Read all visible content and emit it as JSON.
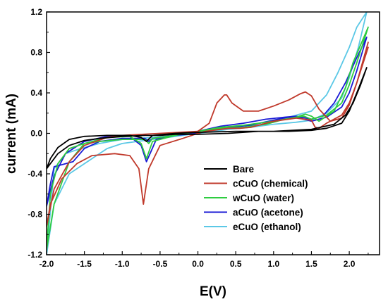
{
  "chart_data": {
    "type": "line",
    "title": "",
    "xlabel": "E(V)",
    "ylabel": "current  (mA)",
    "xlim": [
      -2.0,
      2.4
    ],
    "ylim": [
      -1.2,
      1.2
    ],
    "xticks": [
      "-2.0",
      "-1.5",
      "-1.0",
      "-0.5",
      "0.0",
      "0.5",
      "1.0",
      "1.5",
      "2.0"
    ],
    "xtick_values": [
      -2.0,
      -1.5,
      -1.0,
      -0.5,
      0.0,
      0.5,
      1.0,
      1.5,
      2.0
    ],
    "yticks": [
      "-1.2",
      "-0.8",
      "-0.4",
      "0.0",
      "0.4",
      "0.8",
      "1.2"
    ],
    "ytick_values": [
      -1.2,
      -0.8,
      -0.4,
      0.0,
      0.4,
      0.8,
      1.2
    ],
    "grid": false,
    "legend_position": "bottom-right",
    "series": [
      {
        "name": "Bare",
        "color": "#000000",
        "x": [
          2.23,
          2.1,
          2.0,
          1.9,
          1.7,
          1.5,
          1.2,
          0.8,
          0.4,
          0.0,
          -0.3,
          -0.5,
          -0.7,
          -1.0,
          -1.3,
          -1.5,
          -1.7,
          -1.85,
          -1.95,
          -2.0,
          -1.95,
          -1.85,
          -1.7,
          -1.5,
          -1.2,
          -0.9,
          -0.75,
          -0.68,
          -0.6,
          -0.3,
          0.0,
          0.5,
          1.0,
          1.5,
          1.8,
          1.95,
          2.05,
          2.15,
          2.23
        ],
        "y": [
          0.65,
          0.4,
          0.22,
          0.1,
          0.05,
          0.03,
          0.02,
          0.02,
          0.0,
          -0.01,
          -0.01,
          -0.02,
          -0.02,
          -0.03,
          -0.05,
          -0.07,
          -0.12,
          -0.2,
          -0.3,
          -0.35,
          -0.25,
          -0.14,
          -0.06,
          -0.03,
          -0.02,
          -0.02,
          -0.04,
          -0.08,
          -0.02,
          0.0,
          0.01,
          0.02,
          0.02,
          0.04,
          0.09,
          0.18,
          0.3,
          0.48,
          0.65
        ]
      },
      {
        "name": "cCuO (chemical)",
        "color": "#c0392b",
        "x": [
          2.25,
          2.1,
          2.0,
          1.9,
          1.7,
          1.6,
          1.55,
          1.5,
          1.3,
          1.0,
          0.7,
          0.55,
          0.4,
          0.3,
          0.1,
          0.0,
          -0.2,
          -0.5,
          -0.65,
          -0.72,
          -0.78,
          -0.9,
          -1.1,
          -1.4,
          -1.6,
          -1.8,
          -1.95,
          -2.0,
          -1.9,
          -1.7,
          -1.5,
          -1.2,
          -1.0,
          -0.5,
          0.0,
          0.15,
          0.25,
          0.35,
          0.38,
          0.45,
          0.6,
          0.8,
          1.0,
          1.2,
          1.35,
          1.42,
          1.5,
          1.6,
          1.75,
          1.9,
          2.0,
          2.1,
          2.25
        ],
        "y": [
          0.85,
          0.5,
          0.3,
          0.18,
          0.1,
          0.05,
          0.06,
          0.13,
          0.15,
          0.12,
          0.06,
          0.05,
          0.05,
          0.04,
          0.02,
          0.0,
          -0.05,
          -0.12,
          -0.35,
          -0.7,
          -0.35,
          -0.22,
          -0.2,
          -0.22,
          -0.3,
          -0.45,
          -0.7,
          -0.92,
          -0.55,
          -0.28,
          -0.12,
          -0.04,
          -0.02,
          0.0,
          0.02,
          0.1,
          0.3,
          0.38,
          0.38,
          0.3,
          0.22,
          0.22,
          0.27,
          0.33,
          0.39,
          0.41,
          0.37,
          0.24,
          0.12,
          0.15,
          0.28,
          0.5,
          0.9
        ]
      },
      {
        "name": "wCuO (water)",
        "color": "#2ecc40",
        "x": [
          2.25,
          2.1,
          2.0,
          1.9,
          1.7,
          1.5,
          1.4,
          1.3,
          1.1,
          0.9,
          0.6,
          0.3,
          0.0,
          -0.3,
          -0.6,
          -0.65,
          -0.7,
          -1.0,
          -1.3,
          -1.5,
          -1.7,
          -1.85,
          -1.95,
          -2.0,
          -1.9,
          -1.7,
          -1.5,
          -1.2,
          -0.9,
          -0.75,
          -0.68,
          -0.6,
          -0.3,
          0.0,
          0.3,
          0.6,
          1.0,
          1.3,
          1.42,
          1.5,
          1.6,
          1.8,
          1.95,
          2.05,
          2.25
        ],
        "y": [
          1.05,
          0.7,
          0.48,
          0.3,
          0.18,
          0.14,
          0.17,
          0.16,
          0.13,
          0.09,
          0.06,
          0.05,
          0.02,
          -0.02,
          -0.05,
          -0.1,
          -0.06,
          -0.06,
          -0.08,
          -0.1,
          -0.15,
          -0.3,
          -0.6,
          -1.15,
          -0.7,
          -0.28,
          -0.1,
          -0.04,
          -0.03,
          -0.1,
          -0.25,
          -0.08,
          -0.02,
          0.02,
          0.06,
          0.08,
          0.12,
          0.16,
          0.19,
          0.17,
          0.12,
          0.22,
          0.45,
          0.7,
          1.05
        ]
      },
      {
        "name": "aCuO (acetone)",
        "color": "#1a1ad6",
        "x": [
          2.23,
          2.1,
          2.0,
          1.9,
          1.7,
          1.5,
          1.35,
          1.2,
          1.0,
          0.7,
          0.4,
          0.1,
          0.0,
          -0.3,
          -0.6,
          -0.65,
          -0.7,
          -1.0,
          -1.3,
          -1.5,
          -1.65,
          -1.8,
          -1.9,
          -1.95,
          -2.0,
          -1.9,
          -1.75,
          -1.5,
          -1.2,
          -0.9,
          -0.75,
          -0.68,
          -0.62,
          -0.55,
          -0.3,
          0.0,
          0.3,
          0.6,
          0.9,
          1.15,
          1.3,
          1.5,
          1.65,
          1.8,
          1.95,
          2.1,
          2.23
        ],
        "y": [
          0.95,
          0.62,
          0.4,
          0.26,
          0.16,
          0.12,
          0.15,
          0.16,
          0.13,
          0.08,
          0.06,
          0.02,
          0.0,
          -0.02,
          -0.05,
          -0.08,
          -0.05,
          -0.05,
          -0.08,
          -0.15,
          -0.28,
          -0.31,
          -0.33,
          -0.5,
          -0.72,
          -0.42,
          -0.2,
          -0.08,
          -0.03,
          -0.03,
          -0.12,
          -0.28,
          -0.18,
          -0.06,
          -0.02,
          0.02,
          0.07,
          0.1,
          0.14,
          0.16,
          0.17,
          0.14,
          0.17,
          0.3,
          0.5,
          0.75,
          0.95
        ]
      },
      {
        "name": "eCuO (ethanol)",
        "color": "#5bc8e6",
        "x": [
          2.23,
          2.12,
          2.0,
          1.9,
          1.7,
          1.5,
          1.3,
          1.0,
          0.7,
          0.4,
          0.0,
          -0.3,
          -0.6,
          -1.0,
          -1.3,
          -1.55,
          -1.75,
          -1.9,
          -2.0,
          -1.9,
          -1.7,
          -1.5,
          -1.2,
          -1.0,
          -0.8,
          -0.6,
          -0.3,
          0.0,
          0.4,
          0.8,
          1.2,
          1.5,
          1.7,
          1.85,
          2.0,
          2.1,
          2.23
        ],
        "y": [
          1.2,
          0.85,
          0.55,
          0.35,
          0.2,
          0.13,
          0.11,
          0.09,
          0.06,
          0.04,
          0.0,
          -0.02,
          -0.04,
          -0.06,
          -0.1,
          -0.15,
          -0.2,
          -0.35,
          -1.2,
          -0.7,
          -0.4,
          -0.3,
          -0.15,
          -0.1,
          -0.08,
          -0.06,
          -0.03,
          0.0,
          0.05,
          0.1,
          0.16,
          0.22,
          0.38,
          0.6,
          0.85,
          1.05,
          1.2
        ]
      }
    ]
  }
}
